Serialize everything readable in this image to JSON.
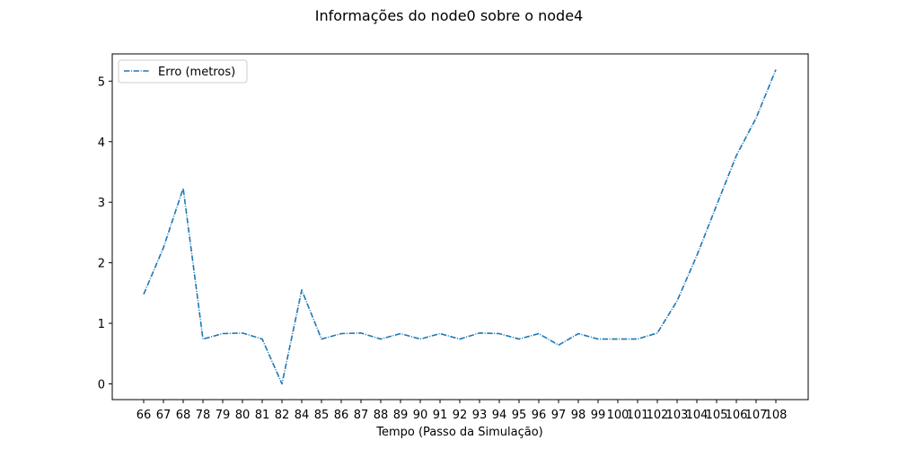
{
  "chart_data": {
    "type": "line",
    "title": "Informações do node0 sobre o node4",
    "xlabel": "Tempo (Passo da Simulação)",
    "ylabel": "",
    "categories": [
      "66",
      "67",
      "68",
      "78",
      "79",
      "80",
      "81",
      "82",
      "84",
      "85",
      "86",
      "87",
      "88",
      "89",
      "90",
      "91",
      "92",
      "93",
      "94",
      "95",
      "96",
      "97",
      "98",
      "99",
      "100",
      "101",
      "102",
      "103",
      "104",
      "105",
      "106",
      "107",
      "108"
    ],
    "series": [
      {
        "name": "Erro (metros)",
        "color": "#1f77b4",
        "line_style": "dashdot",
        "values": [
          1.48,
          2.25,
          3.23,
          0.74,
          0.83,
          0.84,
          0.74,
          0.0,
          1.55,
          0.74,
          0.83,
          0.84,
          0.74,
          0.83,
          0.74,
          0.83,
          0.74,
          0.84,
          0.83,
          0.74,
          0.83,
          0.64,
          0.83,
          0.74,
          0.74,
          0.74,
          0.84,
          1.37,
          2.12,
          2.95,
          3.77,
          4.39,
          5.19
        ]
      }
    ],
    "yticks": [
      0,
      1,
      2,
      3,
      4,
      5
    ],
    "ylim": [
      -0.26,
      5.45
    ],
    "grid": false,
    "legend_position": "upper-left"
  }
}
